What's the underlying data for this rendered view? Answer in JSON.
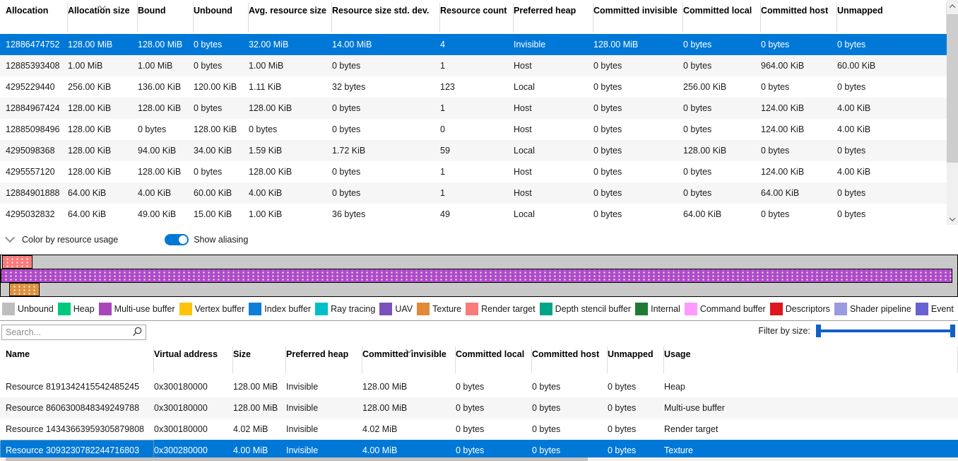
{
  "colors": {
    "selection": "#0078D7",
    "toggle_on": "#0078D7",
    "slider": "#1060C8",
    "map_background": "#C9C9C9"
  },
  "allocation_table": {
    "columns": [
      "Allocation",
      "Allocation size",
      "Bound",
      "Unbound",
      "Avg. resource size",
      "Resource size std. dev.",
      "Resource count",
      "Preferred heap",
      "Committed invisible",
      "Committed local",
      "Committed host",
      "Unmapped"
    ],
    "sorted_column": "Allocation size",
    "sorted_column_index": 1,
    "sort_direction": "descending",
    "selected_row_index": 0,
    "rows": [
      [
        "12886474752",
        "128.00 MiB",
        "128.00 MiB",
        "0 bytes",
        "32.00 MiB",
        "14.00 MiB",
        "4",
        "Invisible",
        "128.00 MiB",
        "0 bytes",
        "0 bytes",
        "0 bytes"
      ],
      [
        "12885393408",
        "1.00 MiB",
        "1.00 MiB",
        "0 bytes",
        "1.00 MiB",
        "0 bytes",
        "1",
        "Host",
        "0 bytes",
        "0 bytes",
        "964.00 KiB",
        "60.00 KiB"
      ],
      [
        "4295229440",
        "256.00 KiB",
        "136.00 KiB",
        "120.00 KiB",
        "1.11 KiB",
        "32 bytes",
        "123",
        "Local",
        "0 bytes",
        "256.00 KiB",
        "0 bytes",
        "0 bytes"
      ],
      [
        "12884967424",
        "128.00 KiB",
        "128.00 KiB",
        "0 bytes",
        "128.00 KiB",
        "0 bytes",
        "1",
        "Host",
        "0 bytes",
        "0 bytes",
        "124.00 KiB",
        "4.00 KiB"
      ],
      [
        "12885098496",
        "128.00 KiB",
        "0 bytes",
        "128.00 KiB",
        "0 bytes",
        "0 bytes",
        "0",
        "Host",
        "0 bytes",
        "0 bytes",
        "124.00 KiB",
        "4.00 KiB"
      ],
      [
        "4295098368",
        "128.00 KiB",
        "94.00 KiB",
        "34.00 KiB",
        "1.59 KiB",
        "1.72 KiB",
        "59",
        "Local",
        "0 bytes",
        "128.00 KiB",
        "0 bytes",
        "0 bytes"
      ],
      [
        "4295557120",
        "128.00 KiB",
        "128.00 KiB",
        "0 bytes",
        "128.00 KiB",
        "0 bytes",
        "1",
        "Host",
        "0 bytes",
        "0 bytes",
        "124.00 KiB",
        "4.00 KiB"
      ],
      [
        "12884901888",
        "64.00 KiB",
        "4.00 KiB",
        "60.00 KiB",
        "4.00 KiB",
        "0 bytes",
        "1",
        "Host",
        "0 bytes",
        "0 bytes",
        "64.00 KiB",
        "0 bytes"
      ],
      [
        "4295032832",
        "64.00 KiB",
        "49.00 KiB",
        "15.00 KiB",
        "1.00 KiB",
        "36 bytes",
        "49",
        "Local",
        "0 bytes",
        "64.00 KiB",
        "0 bytes",
        "0 bytes"
      ]
    ]
  },
  "controls": {
    "color_by_label": "Color by resource usage",
    "toggle_label": "Show aliasing",
    "toggle_on": true
  },
  "memory_map": {
    "bars": [
      {
        "segments": [
          {
            "usage": "Render target",
            "color": "#F97B7B",
            "left_pct": 0.15,
            "width_pct": 3.2
          }
        ]
      },
      {
        "segments": [
          {
            "usage": "Multi-use buffer",
            "color": "#AE4BC8",
            "left_pct": 0,
            "width_pct": 99.45
          }
        ]
      },
      {
        "segments": [
          {
            "usage": "Texture",
            "color": "#E0913F",
            "left_pct": 0.9,
            "width_pct": 3.2
          }
        ]
      }
    ]
  },
  "legend": [
    {
      "label": "Unbound",
      "color": "#BEBEBE"
    },
    {
      "label": "Heap",
      "color": "#00C87D"
    },
    {
      "label": "Multi-use buffer",
      "color": "#A846B9"
    },
    {
      "label": "Vertex buffer",
      "color": "#FFC30B"
    },
    {
      "label": "Index buffer",
      "color": "#0E7DD8"
    },
    {
      "label": "Ray tracing",
      "color": "#00BFC9"
    },
    {
      "label": "UAV",
      "color": "#7951B9"
    },
    {
      "label": "Texture",
      "color": "#E08A3A"
    },
    {
      "label": "Render target",
      "color": "#F97B7B"
    },
    {
      "label": "Depth stencil buffer",
      "color": "#00A487"
    },
    {
      "label": "Internal",
      "color": "#1E7B34"
    },
    {
      "label": "Command buffer",
      "color": "#FF9AFF"
    },
    {
      "label": "Descriptors",
      "color": "#DF1520"
    },
    {
      "label": "Shader pipeline",
      "color": "#9B9BE1"
    },
    {
      "label": "Event",
      "color": "#6862D2"
    }
  ],
  "filter": {
    "search_placeholder": "Search...",
    "filter_label": "Filter by size:"
  },
  "resource_table": {
    "columns": [
      "Name",
      "Virtual address",
      "Size",
      "Preferred heap",
      "Committed invisible",
      "Committed local",
      "Committed host",
      "Unmapped",
      "Usage"
    ],
    "sorted_column": "Committed invisible",
    "sorted_column_index": 4,
    "sort_direction": "descending",
    "selected_row_index": 3,
    "rows": [
      [
        "Resource 8191342415542485245",
        "0x300180000",
        "128.00 MiB",
        "Invisible",
        "128.00 MiB",
        "0 bytes",
        "0 bytes",
        "0 bytes",
        "Heap"
      ],
      [
        "Resource 8606300848349249788",
        "0x300180000",
        "128.00 MiB",
        "Invisible",
        "128.00 MiB",
        "0 bytes",
        "0 bytes",
        "0 bytes",
        "Multi-use buffer"
      ],
      [
        "Resource 14343663959305879808",
        "0x300180000",
        "4.02 MiB",
        "Invisible",
        "4.02 MiB",
        "0 bytes",
        "0 bytes",
        "0 bytes",
        "Render target"
      ],
      [
        "Resource 3093230782244716803",
        "0x300280000",
        "4.00 MiB",
        "Invisible",
        "4.00 MiB",
        "0 bytes",
        "0 bytes",
        "0 bytes",
        "Texture"
      ]
    ]
  }
}
